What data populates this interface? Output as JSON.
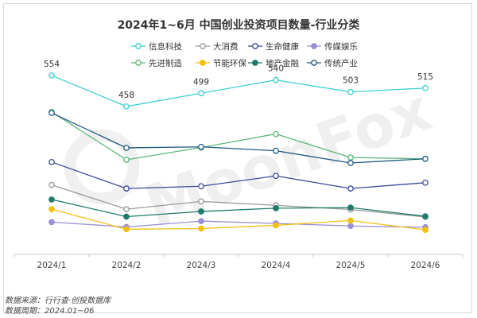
{
  "chart_data": {
    "type": "line",
    "title": "2024年1~6月 中国创业投资项目数量-行业分类",
    "categories": [
      "2024/1",
      "2024/2",
      "2024/3",
      "2024/4",
      "2024/5",
      "2024/6"
    ],
    "ylim": [
      0,
      640
    ],
    "grid": false,
    "legend_position": "top",
    "series": [
      {
        "name": "信息科技",
        "color": "#3ccfcf",
        "marker": "hollow",
        "values": [
          554,
          458,
          499,
          540,
          503,
          515
        ],
        "labels": [
          "554",
          "458",
          "499",
          "540",
          "503",
          "515"
        ]
      },
      {
        "name": "大消费",
        "color": "#9a9a9a",
        "marker": "hollow",
        "values": [
          215,
          140,
          164,
          152,
          139,
          116
        ]
      },
      {
        "name": "生命健康",
        "color": "#3a4a9a",
        "marker": "hollow",
        "values": [
          286,
          204,
          211,
          243,
          204,
          222
        ]
      },
      {
        "name": "传媒娱乐",
        "color": "#9b8fd6",
        "marker": "filled",
        "values": [
          100,
          85,
          103,
          96,
          88,
          84
        ]
      },
      {
        "name": "先进制造",
        "color": "#5cb87a",
        "marker": "hollow",
        "values": [
          441,
          293,
          331,
          373,
          300,
          296
        ]
      },
      {
        "name": "节能环保",
        "color": "#f2c012",
        "marker": "filled",
        "values": [
          140,
          78,
          80,
          90,
          105,
          76
        ]
      },
      {
        "name": "地产金融",
        "color": "#1e7a6a",
        "marker": "filled",
        "values": [
          170,
          117,
          133,
          143,
          145,
          118
        ]
      },
      {
        "name": "传统产业",
        "color": "#1e5a80",
        "marker": "hollow",
        "values": [
          438,
          330,
          333,
          321,
          283,
          296
        ]
      }
    ]
  },
  "watermark": "MoonFox",
  "source": {
    "line1": "数据来源：行行查·创投数据库",
    "line2": "数据周期：2024.01~06"
  }
}
